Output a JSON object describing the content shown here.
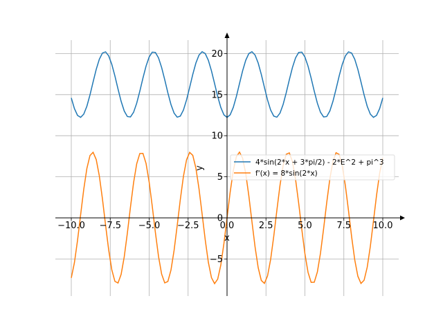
{
  "chart_data": {
    "type": "line",
    "xlabel": "x",
    "ylabel": "y",
    "xlim": [
      -10.5,
      10.5
    ],
    "ylim": [
      -9.5,
      22
    ],
    "grid": true,
    "legend_placement": "center-right",
    "x_ticks": [
      -10,
      -7.5,
      -5,
      -2.5,
      0,
      2.5,
      5,
      7.5,
      10
    ],
    "x_tick_labels": [
      "−10.0",
      "−7.5",
      "−5.0",
      "−2.5",
      "0.0",
      "2.5",
      "5.0",
      "7.5",
      "10.0"
    ],
    "y_ticks": [
      -5,
      0,
      5,
      10,
      15,
      20
    ],
    "y_tick_labels": [
      "−5",
      "0",
      "5",
      "10",
      "15",
      "20"
    ],
    "x_range": [
      -10,
      10
    ],
    "series": [
      {
        "name": "4*sin(2*x + 3*pi/2) - 2*E^2 + pi^3",
        "color": "#1f77b4",
        "expression": "4*sin(2*x + 3*pi/2) - 2*E^2 + pi^3",
        "y_min": 12.23,
        "y_max": 20.23
      },
      {
        "name": "f'(x) = 8*sin(2*x)",
        "color": "#ff7f0e",
        "expression": "8*sin(2*x)",
        "y_min": -8,
        "y_max": 8
      }
    ]
  }
}
